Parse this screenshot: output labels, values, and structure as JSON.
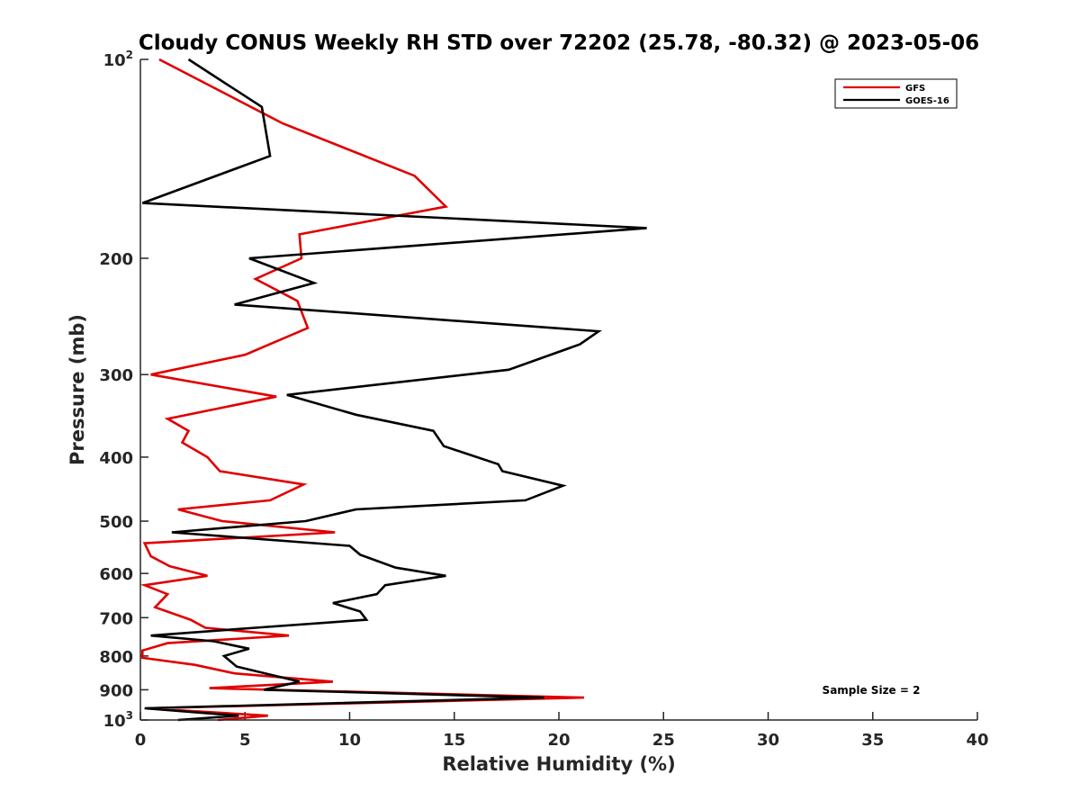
{
  "chart_data": {
    "type": "line",
    "title": "Cloudy CONUS Weekly RH STD over 72202 (25.78, -80.32) @ 2023-05-06",
    "xlabel": "Relative Humidity (%)",
    "ylabel": "Pressure (mb)",
    "xlim": [
      0,
      40
    ],
    "ylim": [
      100,
      1000
    ],
    "y_scale": "log",
    "y_reversed": true,
    "grid": false,
    "legend_position": "top-right",
    "x_ticks": [
      0,
      5,
      10,
      15,
      20,
      25,
      30,
      35,
      40
    ],
    "y_ticks": [
      {
        "value": 100,
        "base": "10",
        "exp": "2",
        "label": ""
      },
      {
        "value": 200,
        "label": "200"
      },
      {
        "value": 300,
        "label": "300"
      },
      {
        "value": 400,
        "label": "400"
      },
      {
        "value": 500,
        "label": "500"
      },
      {
        "value": 600,
        "label": "600"
      },
      {
        "value": 700,
        "label": "700"
      },
      {
        "value": 800,
        "label": "800"
      },
      {
        "value": 900,
        "label": "900"
      },
      {
        "value": 1000,
        "base": "10",
        "exp": "3",
        "label": ""
      }
    ],
    "annotation": "Sample Size = 2",
    "series": [
      {
        "name": "GFS",
        "color": "#e00000",
        "points": [
          [
            0.9,
            100
          ],
          [
            6.8,
            125
          ],
          [
            13.1,
            150
          ],
          [
            14.6,
            167
          ],
          [
            7.6,
            184
          ],
          [
            7.7,
            200
          ],
          [
            5.5,
            215
          ],
          [
            7.5,
            232
          ],
          [
            8.0,
            255
          ],
          [
            5.0,
            280
          ],
          [
            0.5,
            300
          ],
          [
            6.5,
            324
          ],
          [
            1.3,
            350
          ],
          [
            2.3,
            365
          ],
          [
            2.0,
            380
          ],
          [
            3.2,
            400
          ],
          [
            3.8,
            420
          ],
          [
            7.8,
            440
          ],
          [
            6.2,
            465
          ],
          [
            1.8,
            480
          ],
          [
            3.9,
            500
          ],
          [
            9.3,
            520
          ],
          [
            0.2,
            540
          ],
          [
            0.5,
            565
          ],
          [
            1.4,
            585
          ],
          [
            3.2,
            605
          ],
          [
            0.2,
            625
          ],
          [
            1.3,
            645
          ],
          [
            0.7,
            675
          ],
          [
            2.4,
            705
          ],
          [
            3.1,
            725
          ],
          [
            7.1,
            745
          ],
          [
            1.3,
            765
          ],
          [
            0.1,
            785
          ],
          [
            0.1,
            805
          ],
          [
            2.6,
            825
          ],
          [
            4.5,
            850
          ],
          [
            9.2,
            875
          ],
          [
            3.3,
            895
          ],
          [
            21.2,
            925
          ],
          [
            0.3,
            960
          ],
          [
            6.1,
            985
          ],
          [
            3.7,
            1000
          ]
        ]
      },
      {
        "name": "GOES-16",
        "color": "#000000",
        "points": [
          [
            2.3,
            100
          ],
          [
            5.8,
            118
          ],
          [
            6.2,
            140
          ],
          [
            0.1,
            165
          ],
          [
            24.2,
            180
          ],
          [
            5.2,
            200
          ],
          [
            8.3,
            218
          ],
          [
            4.5,
            235
          ],
          [
            21.9,
            258
          ],
          [
            21.0,
            270
          ],
          [
            17.6,
            295
          ],
          [
            7.0,
            322
          ],
          [
            10.3,
            345
          ],
          [
            14.0,
            365
          ],
          [
            14.5,
            385
          ],
          [
            17.1,
            410
          ],
          [
            17.3,
            420
          ],
          [
            20.2,
            442
          ],
          [
            18.4,
            465
          ],
          [
            10.3,
            480
          ],
          [
            7.9,
            500
          ],
          [
            1.5,
            520
          ],
          [
            10.0,
            545
          ],
          [
            10.5,
            562
          ],
          [
            12.2,
            588
          ],
          [
            14.6,
            605
          ],
          [
            11.7,
            625
          ],
          [
            11.3,
            645
          ],
          [
            9.2,
            665
          ],
          [
            10.5,
            685
          ],
          [
            10.8,
            705
          ],
          [
            5.5,
            725
          ],
          [
            0.5,
            745
          ],
          [
            3.5,
            760
          ],
          [
            5.2,
            780
          ],
          [
            4.0,
            800
          ],
          [
            4.6,
            830
          ],
          [
            7.6,
            875
          ],
          [
            5.9,
            900
          ],
          [
            19.3,
            925
          ],
          [
            0.2,
            960
          ],
          [
            4.7,
            985
          ],
          [
            1.8,
            1000
          ]
        ]
      }
    ]
  }
}
